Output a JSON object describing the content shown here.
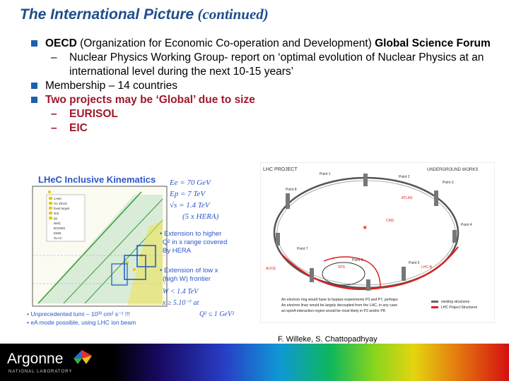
{
  "header": {
    "title_part1": "The ",
    "title_part2": "International Picture",
    "title_part3": " (continued)"
  },
  "bullets": {
    "b1_lead": "OECD",
    "b1_rest": " (Organization for Economic Co-operation and Development) ",
    "b1_end": "Global Science Forum",
    "b1_sub1": "Nuclear Physics Working Group- report on ‘optimal evolution of Nuclear Physics at an international level during the next 10-15 years’",
    "b2": "Membership – 14 countries",
    "b3": "Two projects may be ‘Global’ due to size",
    "b3_sub1": "EURISOL",
    "b3_sub2": "EIC",
    "dash": "–"
  },
  "figure_left": {
    "title": "LHeC Inclusive Kinematics",
    "param1": "Ee = 70 GeV",
    "param2": "Ep = 7 TeV",
    "param3": "√s = 1.4 TeV",
    "param4": "(5 x HERA)",
    "note1_a": "• Extension to higher",
    "note1_b": "Q² in x range covered",
    "note1_c": "By HERA",
    "note2_a": "• Extension of low x",
    "note2_b": "(high W) frontier",
    "cond1": "W < 1.4 TeV",
    "cond2": "x ≥ 5.10⁻⁷ at",
    "cond3": "Q² ≤ 1 GeV²",
    "foot1": "• Unprecedented lumi – 10³³ cm² s⁻¹ !!!",
    "foot2": "• eA mode possible, using LHC ion beam",
    "legend": [
      "LHeC",
      "H1 ZEUS",
      "fixed target",
      "DIS",
      "pp",
      "NMC",
      "BCDMS",
      "E665",
      "SLAC"
    ],
    "colors": {
      "title": "#2a56c8",
      "green": "#3a9a3a",
      "yellow": "#e8c800",
      "blue": "#1a56c8"
    }
  },
  "figure_right": {
    "title": "LHC PROJECT",
    "corner": "UNDERGROUND WORKS",
    "points": [
      "Point 1",
      "Point 2",
      "Point 3",
      "Point 4",
      "Point 5",
      "Point 6",
      "Point 7",
      "Point 8"
    ],
    "labels": [
      "ATLAS",
      "ALICE",
      "CMS",
      "LHC-B",
      "SPS"
    ],
    "caption1": "An electron ring would have to bypass experiments P3 and P7, perhaps",
    "caption2": "An electron linac would be largely decoupled from the LHC, in any case",
    "caption3": "an ep/eA interaction region would be most likely in P2 and/or P8",
    "legend1": "existing structures",
    "legend2": "LHC Project Structures",
    "colors": {
      "ring": "#555555",
      "red": "#e02020"
    }
  },
  "credit": "F. Willeke, S. Chattopadhyay",
  "footer": {
    "logo": "Argonne",
    "sub": "NATIONAL LABORATORY"
  }
}
